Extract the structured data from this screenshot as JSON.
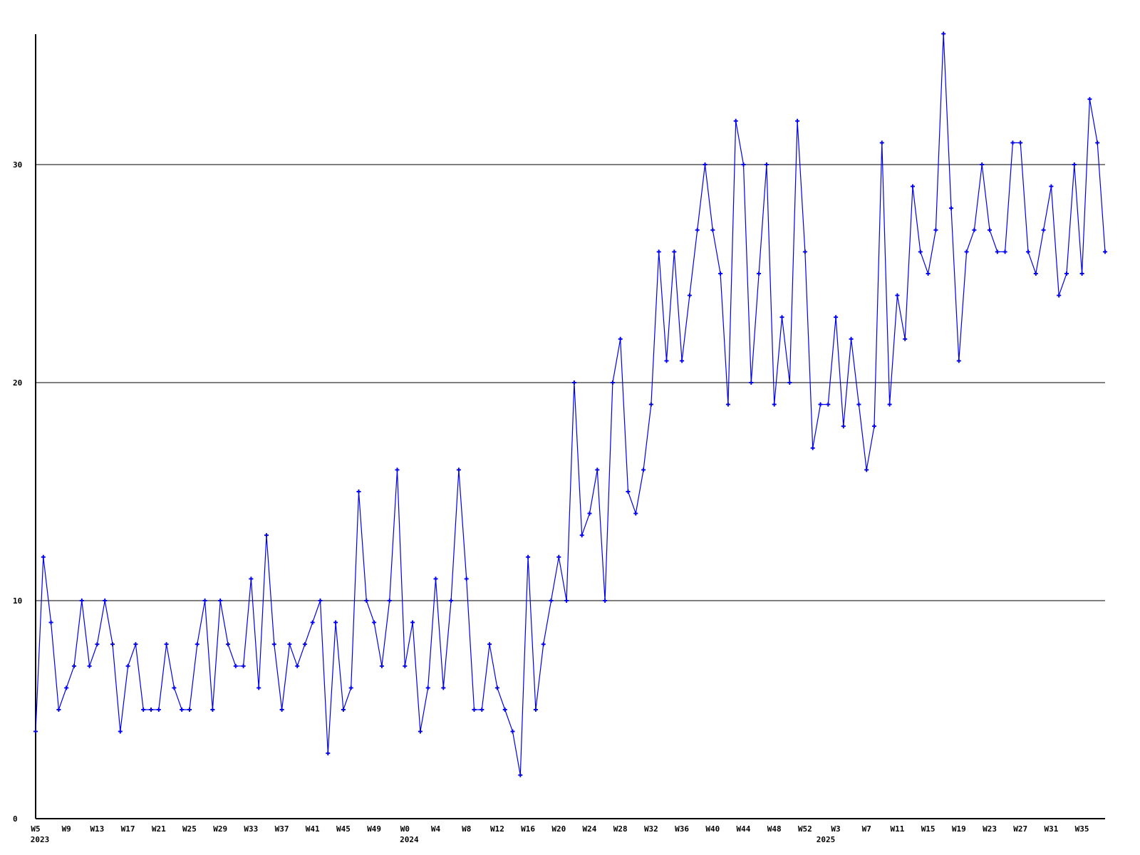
{
  "chart_data": {
    "type": "line",
    "title": "",
    "xlabel": "",
    "ylabel": "",
    "grid": "horizontal",
    "legend": "none",
    "background_color": "#ffffff",
    "axis_color": "#000000",
    "series": [
      {
        "name": "weekly-series",
        "color": "#0000ee",
        "marker": "plus",
        "values": [
          4,
          12,
          9,
          5,
          6,
          7,
          10,
          7,
          8,
          10,
          8,
          4,
          7,
          8,
          5,
          5,
          5,
          8,
          6,
          5,
          5,
          8,
          10,
          5,
          10,
          8,
          7,
          7,
          11,
          6,
          13,
          8,
          5,
          8,
          7,
          8,
          9,
          10,
          3,
          9,
          5,
          6,
          15,
          10,
          9,
          7,
          10,
          16,
          7,
          9,
          4,
          6,
          11,
          6,
          10,
          16,
          11,
          5,
          5,
          8,
          6,
          5,
          4,
          2,
          12,
          5,
          8,
          10,
          12,
          10,
          20,
          13,
          14,
          16,
          10,
          20,
          22,
          15,
          14,
          16,
          19,
          26,
          21,
          26,
          21,
          24,
          27,
          30,
          27,
          25,
          19,
          32,
          30,
          20,
          25,
          30,
          19,
          23,
          20,
          32,
          26,
          17,
          19,
          19,
          23,
          18,
          22,
          19,
          16,
          18,
          31,
          19,
          24,
          22,
          29,
          26,
          25,
          27,
          36,
          28,
          21,
          26,
          27,
          30,
          27,
          26,
          26,
          31,
          31,
          26,
          25,
          27,
          29,
          24,
          25,
          30,
          25,
          33,
          31,
          26
        ]
      }
    ],
    "x_tick_every": 4,
    "x_tick_labels": [
      "W5",
      "W9",
      "W13",
      "W17",
      "W21",
      "W25",
      "W29",
      "W33",
      "W37",
      "W41",
      "W45",
      "W49",
      "W0",
      "W4",
      "W8",
      "W12",
      "W16",
      "W20",
      "W24",
      "W28",
      "W32",
      "W36",
      "W40",
      "W44",
      "W48",
      "W52",
      "W3",
      "W7",
      "W11",
      "W15",
      "W19",
      "W23",
      "W27",
      "W31",
      "W35"
    ],
    "year_markers": [
      {
        "label": "2023",
        "at_tick": "W5"
      },
      {
        "label": "2024",
        "at_tick": "W0"
      },
      {
        "label": "2025",
        "at_tick": "W3"
      }
    ],
    "yticks": [
      0,
      10,
      20,
      30
    ],
    "ylim": [
      0,
      36
    ],
    "xlim_weeks": 140
  }
}
